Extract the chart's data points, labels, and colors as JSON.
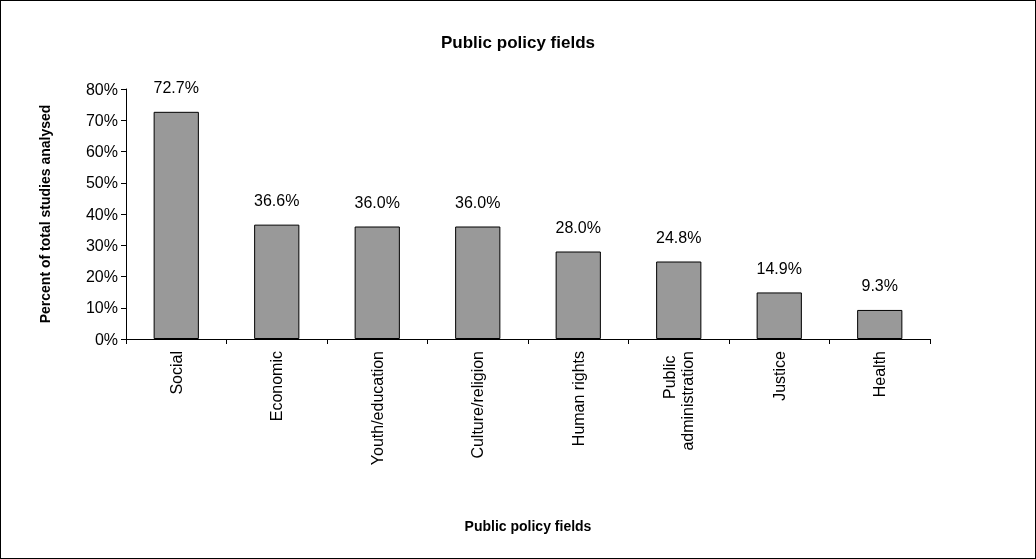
{
  "chart_data": {
    "type": "bar",
    "title": "Public policy fields",
    "xlabel": "Public policy fields",
    "ylabel": "Percent of total studies analysed",
    "categories": [
      "Social",
      "Economic",
      "Youth/education",
      "Culture/religion",
      "Human rights",
      "Public administration",
      "Justice",
      "Health"
    ],
    "values": [
      72.7,
      36.6,
      36.0,
      36.0,
      28.0,
      24.8,
      14.9,
      9.3
    ],
    "value_labels": [
      "72.7%",
      "36.6%",
      "36.0%",
      "36.0%",
      "28.0%",
      "24.8%",
      "14.9%",
      "9.3%"
    ],
    "color": "#999999",
    "ylim": [
      0,
      80
    ],
    "yticks": [
      {
        "value": 0,
        "label": "0%"
      },
      {
        "value": 10,
        "label": "10%"
      },
      {
        "value": 20,
        "label": "20%"
      },
      {
        "value": 30,
        "label": "30%"
      },
      {
        "value": 40,
        "label": "40%"
      },
      {
        "value": 50,
        "label": "50%"
      },
      {
        "value": 60,
        "label": "60%"
      },
      {
        "value": 70,
        "label": "70%"
      },
      {
        "value": 80,
        "label": "80%"
      }
    ],
    "grid": false
  }
}
